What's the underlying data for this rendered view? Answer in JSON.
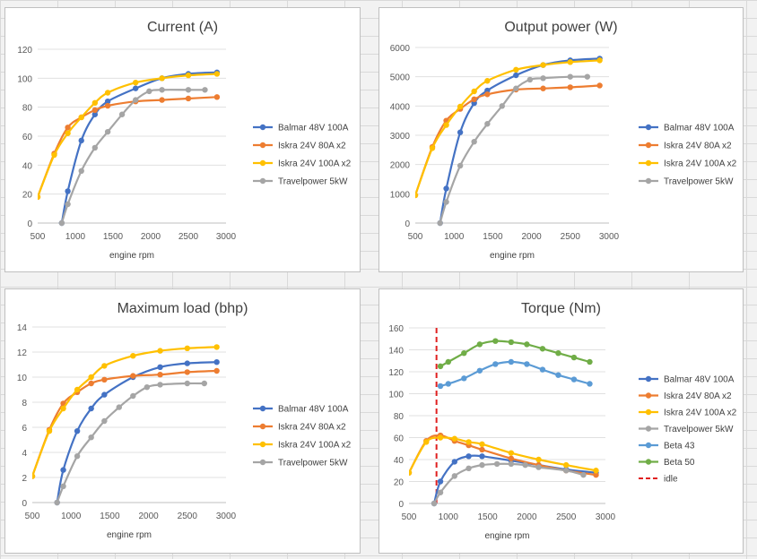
{
  "colors": {
    "balmar": "#4472c4",
    "iskra80": "#ed7d31",
    "iskra100": "#ffc000",
    "travel": "#a5a5a5",
    "beta43": "#5b9bd5",
    "beta50": "#70ad47",
    "idle": "#e02020"
  },
  "chart_data": [
    {
      "type": "line",
      "title": "Current (A)",
      "xlabel": "engine rpm",
      "ylabel": "",
      "xlim": [
        500,
        3000
      ],
      "ylim": [
        0,
        120
      ],
      "xticks": [
        500,
        1000,
        1500,
        2000,
        2500,
        3000
      ],
      "yticks": [
        0,
        20,
        40,
        60,
        80,
        100,
        120
      ],
      "legend_position": "right",
      "series": [
        {
          "name": "Balmar 48V 100A",
          "color_key": "balmar",
          "x": [
            820,
            900,
            1080,
            1260,
            1430,
            1800,
            2150,
            2500,
            2880
          ],
          "y": [
            0,
            22,
            57,
            75,
            84,
            93,
            100,
            103,
            104
          ]
        },
        {
          "name": "Iskra 24V 80A x2",
          "color_key": "iskra80",
          "x": [
            500,
            720,
            900,
            1080,
            1260,
            1430,
            1800,
            2150,
            2500,
            2880
          ],
          "y": [
            18,
            48,
            66,
            73,
            78,
            81,
            84,
            85,
            86,
            87
          ]
        },
        {
          "name": "Iskra 24V 100A x2",
          "color_key": "iskra100",
          "x": [
            500,
            720,
            900,
            1080,
            1260,
            1430,
            1800,
            2150,
            2500,
            2880
          ],
          "y": [
            18,
            47,
            62,
            73,
            83,
            90,
            97,
            100,
            102,
            103
          ]
        },
        {
          "name": "Travelpower 5kW",
          "color_key": "travel",
          "x": [
            820,
            900,
            1080,
            1260,
            1430,
            1620,
            1800,
            1980,
            2150,
            2500,
            2720
          ],
          "y": [
            0,
            13,
            36,
            52,
            63,
            75,
            85,
            91,
            92,
            92,
            92
          ]
        }
      ]
    },
    {
      "type": "line",
      "title": "Output power (W)",
      "xlabel": "engine rpm",
      "ylabel": "",
      "xlim": [
        500,
        3000
      ],
      "ylim": [
        0,
        6000
      ],
      "xticks": [
        500,
        1000,
        1500,
        2000,
        2500,
        3000
      ],
      "yticks": [
        0,
        1000,
        2000,
        3000,
        4000,
        5000,
        6000
      ],
      "legend_position": "right",
      "series": [
        {
          "name": "Balmar 48V 100A",
          "color_key": "balmar",
          "x": [
            820,
            900,
            1080,
            1260,
            1430,
            1800,
            2150,
            2500,
            2880
          ],
          "y": [
            0,
            1180,
            3100,
            4100,
            4530,
            5050,
            5400,
            5560,
            5620
          ]
        },
        {
          "name": "Iskra 24V 80A x2",
          "color_key": "iskra80",
          "x": [
            500,
            720,
            900,
            1080,
            1260,
            1430,
            1800,
            2150,
            2500,
            2880
          ],
          "y": [
            950,
            2600,
            3500,
            3900,
            4230,
            4400,
            4560,
            4600,
            4640,
            4700
          ]
        },
        {
          "name": "Iskra 24V 100A x2",
          "color_key": "iskra100",
          "x": [
            500,
            720,
            900,
            1080,
            1260,
            1430,
            1800,
            2150,
            2500,
            2880
          ],
          "y": [
            950,
            2560,
            3350,
            3980,
            4500,
            4860,
            5240,
            5400,
            5500,
            5560
          ]
        },
        {
          "name": "Travelpower 5kW",
          "color_key": "travel",
          "x": [
            820,
            900,
            1080,
            1260,
            1430,
            1620,
            1800,
            1980,
            2150,
            2500,
            2720
          ],
          "y": [
            0,
            720,
            1960,
            2780,
            3390,
            4000,
            4600,
            4900,
            4950,
            5000,
            5000
          ]
        }
      ]
    },
    {
      "type": "line",
      "title": "Maximum load (bhp)",
      "xlabel": "engine rpm",
      "ylabel": "",
      "xlim": [
        500,
        3000
      ],
      "ylim": [
        0,
        14
      ],
      "xticks": [
        500,
        1000,
        1500,
        2000,
        2500,
        3000
      ],
      "yticks": [
        0,
        2,
        4,
        6,
        8,
        10,
        12,
        14
      ],
      "legend_position": "right",
      "series": [
        {
          "name": "Balmar 48V 100A",
          "color_key": "balmar",
          "x": [
            820,
            900,
            1080,
            1260,
            1430,
            1800,
            2150,
            2500,
            2880
          ],
          "y": [
            0,
            2.6,
            5.7,
            7.5,
            8.6,
            10.0,
            10.8,
            11.1,
            11.2
          ]
        },
        {
          "name": "Iskra 24V 80A x2",
          "color_key": "iskra80",
          "x": [
            500,
            720,
            900,
            1080,
            1260,
            1430,
            1800,
            2150,
            2500,
            2880
          ],
          "y": [
            2.1,
            5.8,
            7.9,
            8.8,
            9.5,
            9.8,
            10.1,
            10.2,
            10.4,
            10.5
          ]
        },
        {
          "name": "Iskra 24V 100A x2",
          "color_key": "iskra100",
          "x": [
            500,
            720,
            900,
            1080,
            1260,
            1430,
            1800,
            2150,
            2500,
            2880
          ],
          "y": [
            2.1,
            5.7,
            7.5,
            9.0,
            10.0,
            10.9,
            11.7,
            12.1,
            12.3,
            12.4
          ]
        },
        {
          "name": "Travelpower 5kW",
          "color_key": "travel",
          "x": [
            820,
            900,
            1080,
            1260,
            1430,
            1620,
            1800,
            1980,
            2150,
            2500,
            2720
          ],
          "y": [
            0,
            1.3,
            3.7,
            5.2,
            6.5,
            7.6,
            8.5,
            9.2,
            9.4,
            9.5,
            9.5
          ]
        }
      ]
    },
    {
      "type": "line",
      "title": "Torque (Nm)",
      "xlabel": "engine rpm",
      "ylabel": "",
      "xlim": [
        500,
        3000
      ],
      "ylim": [
        0,
        160
      ],
      "xticks": [
        500,
        1000,
        1500,
        2000,
        2500,
        3000
      ],
      "yticks": [
        0,
        20,
        40,
        60,
        80,
        100,
        120,
        140,
        160
      ],
      "legend_position": "right",
      "idle_rpm": 850,
      "series": [
        {
          "name": "Balmar 48V 100A",
          "color_key": "balmar",
          "x": [
            820,
            900,
            1080,
            1260,
            1430,
            1800,
            2150,
            2500,
            2880
          ],
          "y": [
            0,
            20,
            38,
            43,
            43,
            39,
            35,
            31,
            28
          ]
        },
        {
          "name": "Iskra 24V 80A x2",
          "color_key": "iskra80",
          "x": [
            500,
            720,
            900,
            1080,
            1260,
            1430,
            1800,
            2150,
            2500,
            2880
          ],
          "y": [
            28,
            57,
            62,
            57,
            53,
            49,
            41,
            35,
            30,
            26
          ]
        },
        {
          "name": "Iskra 24V 100A x2",
          "color_key": "iskra100",
          "x": [
            500,
            720,
            900,
            1080,
            1260,
            1430,
            1800,
            2150,
            2500,
            2880
          ],
          "y": [
            28,
            56,
            60,
            59,
            56,
            54,
            46,
            40,
            35,
            30
          ]
        },
        {
          "name": "Travelpower 5kW",
          "color_key": "travel",
          "x": [
            820,
            900,
            1080,
            1260,
            1430,
            1620,
            1800,
            1980,
            2150,
            2500,
            2720
          ],
          "y": [
            0,
            10,
            25,
            32,
            35,
            36,
            36,
            35,
            33,
            30,
            26
          ]
        },
        {
          "name": "Beta 43",
          "color_key": "beta43",
          "x": [
            900,
            1000,
            1200,
            1400,
            1600,
            1800,
            2000,
            2200,
            2400,
            2600,
            2800
          ],
          "y": [
            107,
            109,
            114,
            121,
            127,
            129,
            127,
            122,
            117,
            113,
            109
          ]
        },
        {
          "name": "Beta 50",
          "color_key": "beta50",
          "x": [
            900,
            1000,
            1200,
            1400,
            1600,
            1800,
            2000,
            2200,
            2400,
            2600,
            2800
          ],
          "y": [
            125,
            129,
            137,
            145,
            148,
            147,
            145,
            141,
            137,
            133,
            129
          ]
        }
      ],
      "extra_legend": [
        {
          "name": "idle",
          "color_key": "idle",
          "style": "dashed"
        }
      ]
    }
  ]
}
